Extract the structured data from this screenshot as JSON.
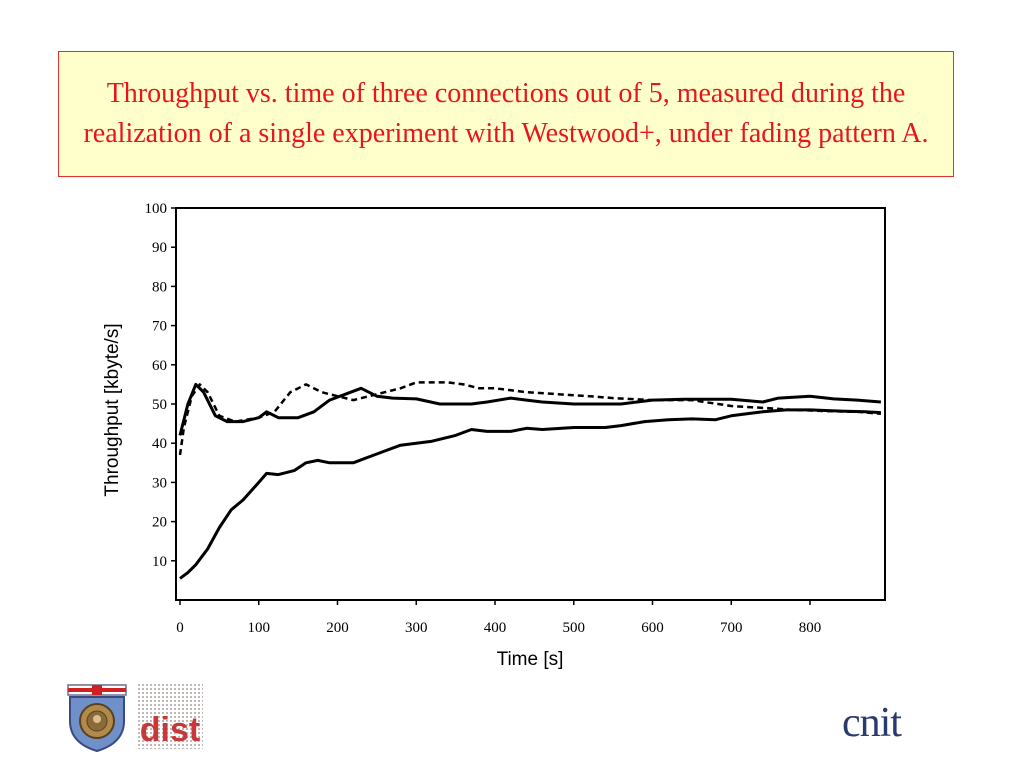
{
  "slide": {
    "title": "Throughput vs. time of three connections out of 5, measured during the realization of a single experiment with Westwood+, under fading pattern A.",
    "title_color": "#e8141e",
    "title_bg": "#ffffcc",
    "title_border": "#e03030"
  },
  "logos": {
    "left_emblem": "university-shield-logo",
    "middle": "dist",
    "right": "cnit"
  },
  "chart_data": {
    "type": "line",
    "xlabel": "Time [s]",
    "ylabel": "Throughput [kbyte/s]",
    "xlim": [
      0,
      900
    ],
    "ylim": [
      0,
      100
    ],
    "xticks": [
      0,
      100,
      200,
      300,
      400,
      500,
      600,
      700,
      800
    ],
    "yticks": [
      10,
      20,
      30,
      40,
      50,
      60,
      70,
      80,
      90,
      100
    ],
    "grid": false,
    "legend": "none",
    "series": [
      {
        "style": "solid",
        "points": [
          [
            0,
            42
          ],
          [
            10,
            50
          ],
          [
            20,
            55
          ],
          [
            30,
            53
          ],
          [
            45,
            47
          ],
          [
            60,
            45.5
          ],
          [
            80,
            45.5
          ],
          [
            100,
            46.5
          ],
          [
            110,
            48
          ],
          [
            125,
            46.5
          ],
          [
            150,
            46.5
          ],
          [
            170,
            48
          ],
          [
            190,
            51
          ],
          [
            210,
            52.5
          ],
          [
            230,
            54
          ],
          [
            250,
            52
          ],
          [
            270,
            51.5
          ],
          [
            300,
            51.3
          ],
          [
            330,
            50
          ],
          [
            370,
            50
          ],
          [
            390,
            50.5
          ],
          [
            420,
            51.5
          ],
          [
            440,
            51
          ],
          [
            460,
            50.5
          ],
          [
            500,
            50
          ],
          [
            560,
            50
          ],
          [
            600,
            51
          ],
          [
            640,
            51.2
          ],
          [
            700,
            51.2
          ],
          [
            740,
            50.5
          ],
          [
            760,
            51.5
          ],
          [
            800,
            52
          ],
          [
            830,
            51.3
          ],
          [
            860,
            51
          ],
          [
            890,
            50.5
          ]
        ]
      },
      {
        "style": "dashed",
        "points": [
          [
            0,
            37
          ],
          [
            5,
            44
          ],
          [
            15,
            52
          ],
          [
            25,
            55
          ],
          [
            35,
            53
          ],
          [
            50,
            47
          ],
          [
            70,
            45.5
          ],
          [
            100,
            46.5
          ],
          [
            120,
            48
          ],
          [
            140,
            53
          ],
          [
            160,
            55
          ],
          [
            180,
            53
          ],
          [
            200,
            52
          ],
          [
            220,
            51
          ],
          [
            240,
            52
          ],
          [
            260,
            53
          ],
          [
            280,
            54
          ],
          [
            300,
            55.5
          ],
          [
            340,
            55.5
          ],
          [
            360,
            55
          ],
          [
            380,
            54
          ],
          [
            400,
            54
          ],
          [
            440,
            53
          ],
          [
            480,
            52.5
          ],
          [
            520,
            52
          ],
          [
            550,
            51.5
          ],
          [
            600,
            51
          ],
          [
            650,
            51
          ],
          [
            700,
            49.5
          ],
          [
            740,
            49
          ],
          [
            780,
            48.5
          ],
          [
            820,
            48.2
          ],
          [
            860,
            48
          ],
          [
            890,
            47.5
          ]
        ]
      },
      {
        "style": "solid",
        "points": [
          [
            0,
            5.5
          ],
          [
            10,
            7
          ],
          [
            20,
            9
          ],
          [
            35,
            13
          ],
          [
            50,
            18.5
          ],
          [
            65,
            23
          ],
          [
            80,
            25.5
          ],
          [
            100,
            30
          ],
          [
            110,
            32.3
          ],
          [
            125,
            32
          ],
          [
            145,
            33
          ],
          [
            160,
            35
          ],
          [
            175,
            35.6
          ],
          [
            190,
            35
          ],
          [
            220,
            35
          ],
          [
            240,
            36.5
          ],
          [
            260,
            38
          ],
          [
            280,
            39.5
          ],
          [
            300,
            40
          ],
          [
            320,
            40.5
          ],
          [
            350,
            42
          ],
          [
            370,
            43.5
          ],
          [
            390,
            43
          ],
          [
            420,
            43
          ],
          [
            440,
            43.8
          ],
          [
            460,
            43.5
          ],
          [
            500,
            44
          ],
          [
            540,
            44
          ],
          [
            560,
            44.5
          ],
          [
            590,
            45.5
          ],
          [
            620,
            46
          ],
          [
            650,
            46.2
          ],
          [
            680,
            46
          ],
          [
            700,
            47
          ],
          [
            720,
            47.5
          ],
          [
            740,
            48
          ],
          [
            770,
            48.5
          ],
          [
            800,
            48.5
          ],
          [
            840,
            48.2
          ],
          [
            870,
            48
          ],
          [
            890,
            47.8
          ]
        ]
      }
    ]
  }
}
